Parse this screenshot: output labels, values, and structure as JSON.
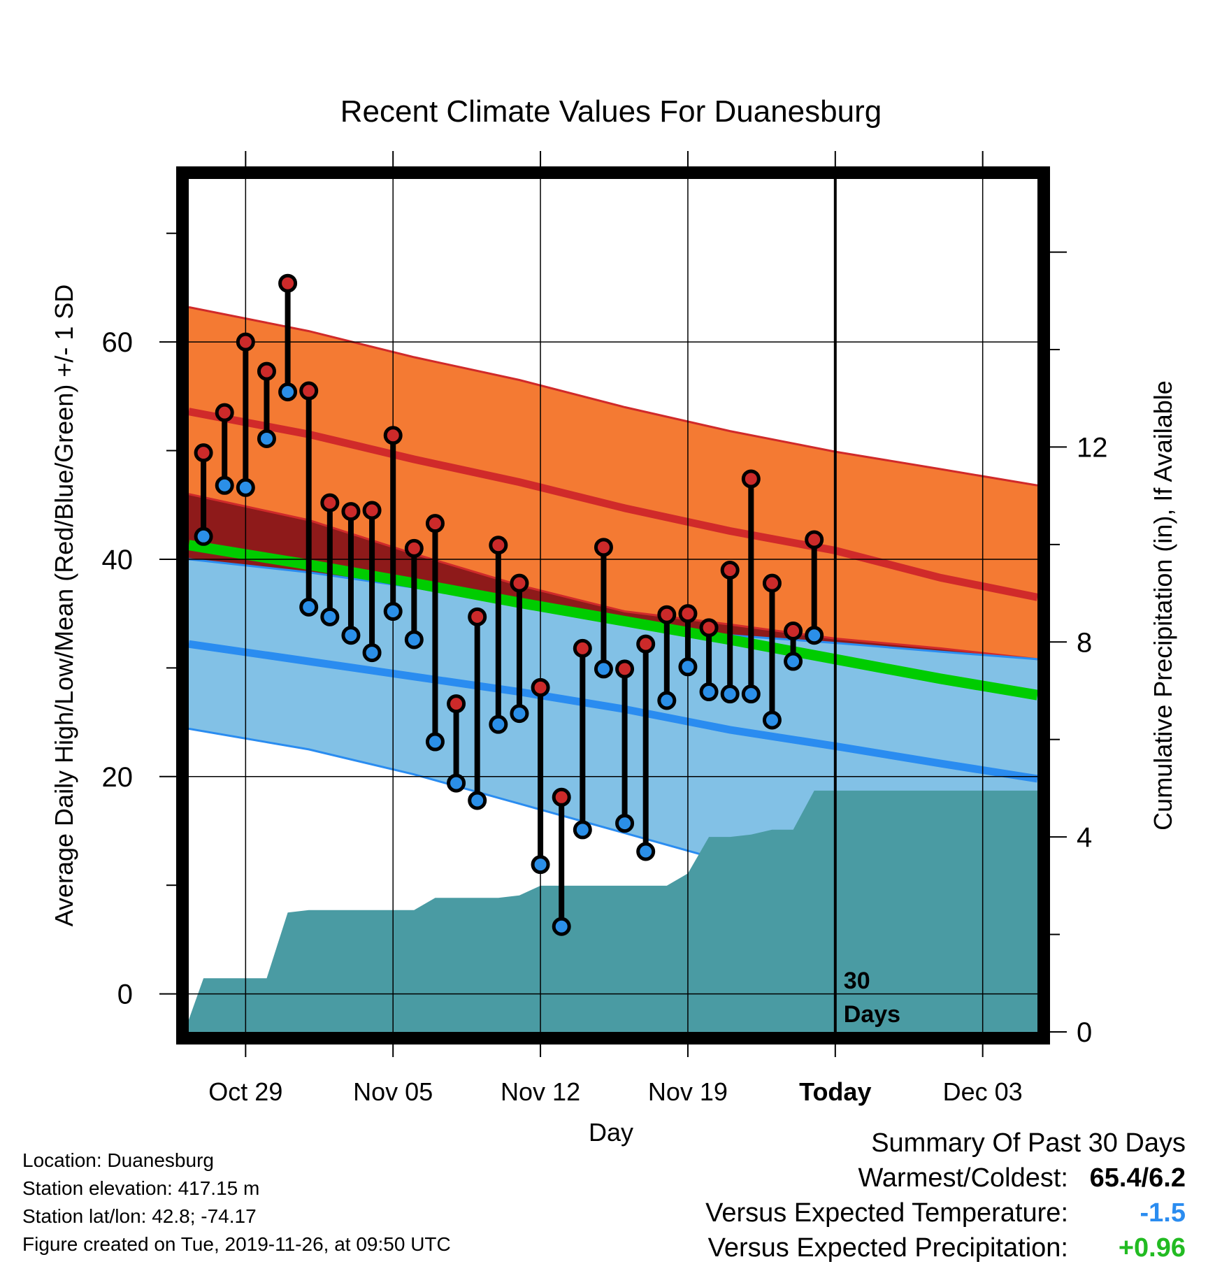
{
  "chart_data": {
    "type": "line",
    "title": "Recent Climate Values For Duanesburg",
    "xlabel": "Day",
    "ylabel": "Average Daily High/Low/Mean (Red/Blue/Green) +/- 1 SD",
    "y2label": "Cumulative Precipitation (in), If Available",
    "x_ticks": [
      "Oct 29",
      "Nov 05",
      "Nov 12",
      "Nov 19",
      "Today",
      "Dec 03"
    ],
    "x_tick_days": [
      2,
      9,
      16,
      23,
      30,
      37
    ],
    "xlim": [
      -0.7,
      39.6
    ],
    "ylim": [
      -3.5,
      75
    ],
    "y_ticks": [
      0,
      20,
      40,
      60
    ],
    "y2lim": [
      0,
      17.5
    ],
    "y2_ticks": [
      0,
      4,
      8,
      12
    ],
    "today_day": 30,
    "today_annotation": [
      "30",
      "Days"
    ],
    "grid": true,
    "normal_high": {
      "day": [
        -0.7,
        5,
        10,
        15,
        20,
        25,
        30,
        35,
        39.6
      ],
      "mean": [
        53.6,
        51.5,
        49.2,
        47.1,
        44.7,
        42.6,
        40.8,
        38.3,
        36.5
      ],
      "upper": [
        63.2,
        61.0,
        58.6,
        56.5,
        54.0,
        51.8,
        49.9,
        48.3,
        46.8
      ],
      "lower": [
        46.0,
        43.6,
        40.5,
        37.6,
        35.2,
        34.0,
        32.7,
        31.8,
        30.8
      ]
    },
    "normal_low": {
      "day": [
        -0.7,
        5,
        10,
        15,
        20,
        25,
        30,
        35,
        39.6
      ],
      "mean": [
        32.2,
        30.6,
        29.2,
        27.8,
        26.2,
        24.3,
        22.8,
        21.2,
        19.8
      ],
      "upper": [
        40.0,
        38.8,
        37.4,
        35.8,
        34.2,
        33.0,
        32.3,
        31.5,
        30.8
      ],
      "lower": [
        24.4,
        22.5,
        20.2,
        17.5,
        14.8,
        12.1,
        10.0,
        9.0,
        8.0
      ]
    },
    "normal_mean": {
      "day": [
        -0.7,
        5,
        10,
        15,
        20,
        25,
        30,
        35,
        39.6
      ],
      "values": [
        41.3,
        39.5,
        37.8,
        36.0,
        34.3,
        32.6,
        30.8,
        29.0,
        27.5
      ]
    },
    "series": [
      {
        "name": "High",
        "color": "#cc2a2a",
        "values": [
          49.8,
          53.5,
          60.0,
          57.3,
          65.4,
          55.5,
          45.2,
          44.4,
          44.5,
          51.4,
          41.0,
          43.3,
          26.7,
          34.7,
          41.3,
          37.8,
          28.2,
          18.1,
          31.8,
          41.1,
          29.9,
          32.2,
          34.9,
          35.0,
          33.7,
          39.0,
          47.4,
          37.8,
          33.4,
          41.8
        ]
      },
      {
        "name": "Low",
        "color": "#2b8fe8",
        "values": [
          42.1,
          46.8,
          46.6,
          51.1,
          55.4,
          35.6,
          34.7,
          33.0,
          31.4,
          35.2,
          32.6,
          23.2,
          19.4,
          17.8,
          24.8,
          25.8,
          11.9,
          6.2,
          15.1,
          29.9,
          15.7,
          13.1,
          27.0,
          30.1,
          27.8,
          27.6,
          27.6,
          25.2,
          30.6,
          33.0
        ]
      }
    ],
    "days": [
      0,
      1,
      2,
      3,
      4,
      5,
      6,
      7,
      8,
      9,
      10,
      11,
      12,
      13,
      14,
      15,
      16,
      17,
      18,
      19,
      20,
      21,
      22,
      23,
      24,
      25,
      26,
      27,
      28,
      29
    ],
    "precipitation": {
      "day": [
        -0.7,
        0,
        1,
        2,
        3,
        4,
        5,
        6,
        7,
        8,
        9,
        10,
        11,
        12,
        13,
        14,
        15,
        16,
        17,
        18,
        19,
        20,
        21,
        22,
        23,
        24,
        25,
        26,
        27,
        28,
        29,
        30,
        39.6
      ],
      "values": [
        0.25,
        1.1,
        1.1,
        1.1,
        1.1,
        2.45,
        2.5,
        2.5,
        2.5,
        2.5,
        2.5,
        2.5,
        2.75,
        2.75,
        2.75,
        2.75,
        2.8,
        3.0,
        3.0,
        3.0,
        3.0,
        3.0,
        3.0,
        3.0,
        3.25,
        4.0,
        4.0,
        4.05,
        4.15,
        4.15,
        4.95,
        4.95,
        4.95
      ]
    },
    "colors": {
      "high_band": "#f47a33",
      "high_mean": "#d02a2a",
      "low_band": "#82c1e6",
      "low_mean": "#2a8cf0",
      "mean_line": "#00cc00",
      "overlap": "#8e1a1a",
      "precip": "#4a9ba3"
    }
  },
  "footer": {
    "location": "Location: Duanesburg",
    "elevation": "Station elevation: 417.15 m",
    "latlon": "Station lat/lon: 42.8; -74.17",
    "created": "Figure created on Tue, 2019-11-26, at 09:50 UTC"
  },
  "summary": {
    "heading": "Summary Of Past 30 Days",
    "warmest_label": "Warmest/Coldest:",
    "warmest_value": "65.4/6.2",
    "temp_label": "Versus Expected Temperature:",
    "temp_value": "-1.5",
    "temp_color": "#2a8cf0",
    "precip_label": "Versus Expected Precipitation:",
    "precip_value": "+0.96",
    "precip_color": "#22bb22"
  }
}
